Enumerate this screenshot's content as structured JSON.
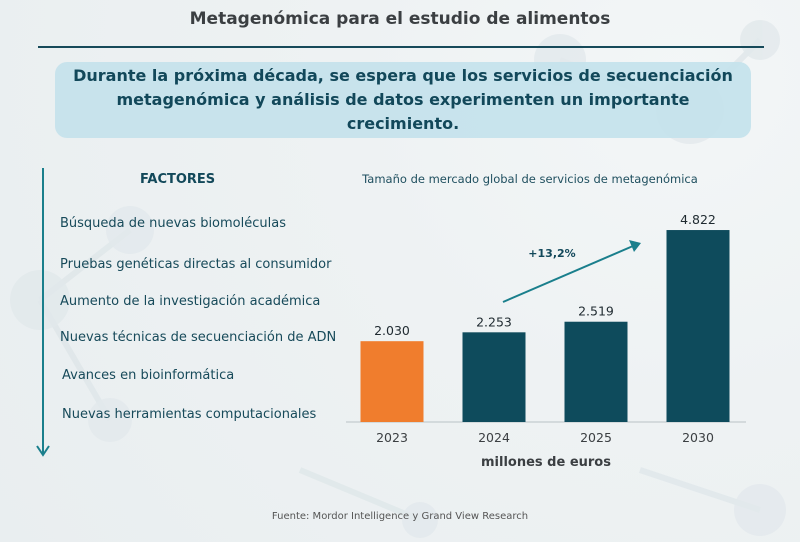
{
  "page": {
    "title": "Metagenómica para el estudio de alimentos",
    "callout": "Durante la próxima década, se espera que los servicios de secuenciación metagenómica y análisis de datos experimenten un importante crecimiento.",
    "source": "Fuente:  Mordor Intelligence y Grand View Research"
  },
  "factors": {
    "heading": "FACTORES",
    "items": [
      "Búsqueda de nuevas biomoléculas",
      "Pruebas genéticas directas al consumidor",
      "Aumento de la investigación académica",
      "Nuevas técnicas de secuenciación de ADN",
      "Avances en bioinformática",
      "Nuevas herramientas computacionales"
    ]
  },
  "chart_data": {
    "type": "bar",
    "title": "Tamaño de mercado global de servicios de metagenómica",
    "categories": [
      "2023",
      "2024",
      "2025",
      "2030"
    ],
    "values": [
      2030,
      2253,
      2519,
      4822
    ],
    "value_labels": [
      "2.030",
      "2.253",
      "2.519",
      "4.822"
    ],
    "xlabel": "millones de euros",
    "ylabel": "",
    "ylim": [
      0,
      5200
    ],
    "annotation": "+13,2%",
    "colors": {
      "highlight": "#f07d2d",
      "bar": "#0e4b5c",
      "arrow": "#1a7f8c"
    }
  }
}
